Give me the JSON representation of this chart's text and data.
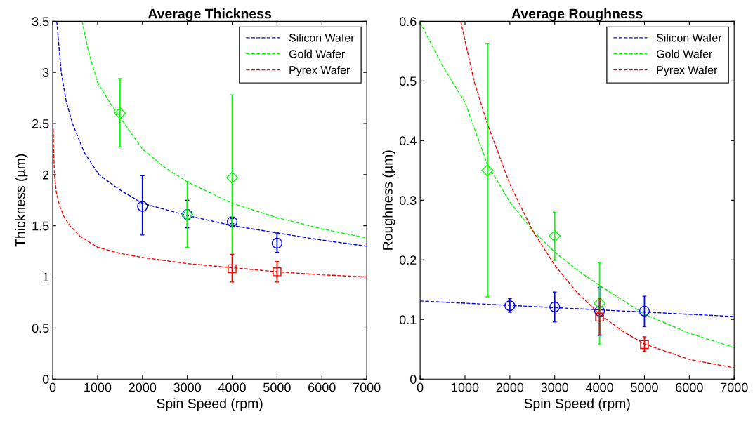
{
  "chart_data": [
    {
      "type": "line",
      "title": "Average Thickness",
      "xlabel": "Spin Speed (rpm)",
      "ylabel": "Thickness (µm)",
      "xlim": [
        0,
        7000
      ],
      "ylim": [
        0,
        3.5
      ],
      "xticks": [
        0,
        1000,
        2000,
        3000,
        4000,
        5000,
        6000,
        7000
      ],
      "yticks": [
        0,
        0.5,
        1,
        1.5,
        2,
        2.5,
        3,
        3.5
      ],
      "legend": "top right",
      "grid": false,
      "series": [
        {
          "name": "Silicon Wafer",
          "line_style": "dashed",
          "marker": "none",
          "color": "#0000ff",
          "x": [
            90,
            190,
            300,
            440,
            700,
            1030,
            1500,
            2000,
            3000,
            4030,
            5000,
            6000,
            7000
          ],
          "values": [
            3.5,
            3.0,
            2.72,
            2.5,
            2.22,
            2.0,
            1.85,
            1.72,
            1.6,
            1.5,
            1.43,
            1.36,
            1.3
          ]
        },
        {
          "name": "Gold Wafer",
          "line_style": "dashed",
          "marker": "none",
          "color": "#00ff00",
          "x": [
            655,
            800,
            1000,
            1250,
            1500,
            2000,
            2500,
            3000,
            4000,
            5000,
            6000,
            7000
          ],
          "values": [
            3.5,
            3.2,
            2.9,
            2.72,
            2.56,
            2.25,
            2.07,
            1.93,
            1.72,
            1.58,
            1.47,
            1.38
          ]
        },
        {
          "name": "Pyrex Wafer",
          "line_style": "dashed",
          "marker": "none",
          "color": "#ff0000",
          "x": [
            12,
            20,
            40,
            80,
            150,
            250,
            385,
            600,
            1000,
            1500,
            2000,
            3000,
            4000,
            5000,
            6000,
            7000
          ],
          "values": [
            2.45,
            2.25,
            2.0,
            1.83,
            1.7,
            1.59,
            1.5,
            1.4,
            1.29,
            1.23,
            1.19,
            1.13,
            1.09,
            1.05,
            1.02,
            1.0
          ]
        },
        {
          "type": "scatter",
          "marker": "circle",
          "color": "#0000ff",
          "x": [
            2000,
            3000,
            4000,
            5000
          ],
          "values": [
            1.69,
            1.61,
            1.54,
            1.33
          ],
          "errors": [
            [
              1.41,
              1.99
            ],
            [
              1.48,
              1.75
            ],
            [
              1.52,
              1.57
            ],
            [
              1.24,
              1.43
            ]
          ]
        },
        {
          "type": "scatter",
          "marker": "diamond",
          "color": "#00ff00",
          "x": [
            1500,
            3000,
            4000
          ],
          "values": [
            2.6,
            1.61,
            1.97
          ],
          "errors": [
            [
              2.27,
              2.94
            ],
            [
              1.29,
              1.93
            ],
            [
              1.22,
              2.78
            ]
          ]
        },
        {
          "type": "scatter",
          "marker": "square",
          "color": "#ff0000",
          "x": [
            4000,
            5000
          ],
          "values": [
            1.08,
            1.05
          ],
          "errors": [
            [
              0.95,
              1.22
            ],
            [
              0.95,
              1.15
            ]
          ]
        }
      ]
    },
    {
      "type": "line",
      "title": "Average Roughness",
      "xlabel": "Spin Speed (rpm)",
      "ylabel": "Roughness (µm)",
      "xlim": [
        0,
        7000
      ],
      "ylim": [
        0,
        0.6
      ],
      "xticks": [
        0,
        1000,
        2000,
        3000,
        4000,
        5000,
        6000,
        7000
      ],
      "yticks": [
        0,
        0.1,
        0.2,
        0.3,
        0.4,
        0.5,
        0.6
      ],
      "legend": "top right",
      "grid": false,
      "series": [
        {
          "name": "Silicon Wafer",
          "line_style": "dashed",
          "marker": "none",
          "color": "#0000ff",
          "x": [
            0,
            3500,
            7000
          ],
          "values": [
            0.131,
            0.118,
            0.105
          ]
        },
        {
          "name": "Gold Wafer",
          "line_style": "dashed",
          "marker": "none",
          "color": "#00ff00",
          "x": [
            0,
            500,
            1000,
            1500,
            2000,
            2500,
            3000,
            3500,
            4000,
            5000,
            6000,
            7000
          ],
          "values": [
            0.598,
            0.525,
            0.464,
            0.36,
            0.297,
            0.25,
            0.213,
            0.183,
            0.157,
            0.109,
            0.077,
            0.053
          ]
        },
        {
          "name": "Pyrex Wafer",
          "line_style": "dashed",
          "marker": "none",
          "color": "#ff0000",
          "x": [
            905,
            1200,
            1500,
            2000,
            2500,
            3000,
            3500,
            4000,
            4500,
            5000,
            6000,
            7000
          ],
          "values": [
            0.6,
            0.5,
            0.428,
            0.327,
            0.25,
            0.191,
            0.145,
            0.109,
            0.081,
            0.059,
            0.033,
            0.019
          ]
        },
        {
          "type": "scatter",
          "marker": "circle",
          "color": "#0000ff",
          "x": [
            2000,
            3000,
            4000,
            5000
          ],
          "values": [
            0.123,
            0.121,
            0.114,
            0.114
          ],
          "errors": [
            [
              0.112,
              0.135
            ],
            [
              0.096,
              0.146
            ],
            [
              0.073,
              0.154
            ],
            [
              0.088,
              0.139
            ]
          ]
        },
        {
          "type": "scatter",
          "marker": "diamond",
          "color": "#00ff00",
          "x": [
            1500,
            3000,
            4000
          ],
          "values": [
            0.35,
            0.24,
            0.127
          ],
          "errors": [
            [
              0.138,
              0.563
            ],
            [
              0.199,
              0.28
            ],
            [
              0.059,
              0.195
            ]
          ]
        },
        {
          "type": "scatter",
          "marker": "square",
          "color": "#ff0000",
          "x": [
            4000,
            5000
          ],
          "values": [
            0.104,
            0.058
          ],
          "errors": [
            [
              0.074,
              0.135
            ],
            [
              0.047,
              0.071
            ]
          ]
        }
      ]
    }
  ]
}
